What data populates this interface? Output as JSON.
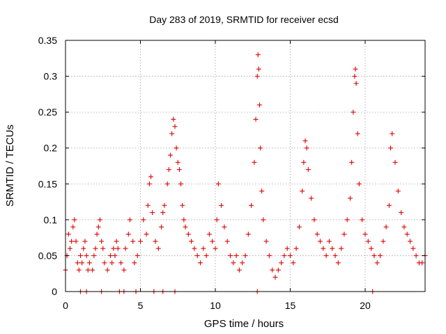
{
  "chart_data": {
    "type": "scatter",
    "title": "Day 283 of 2019, SRMTID for receiver ecsd",
    "xlabel": "GPS time / hours",
    "ylabel": "SRMTID / TECUs",
    "xlim": [
      0,
      24
    ],
    "ylim": [
      0,
      0.35
    ],
    "x_ticks": [
      0,
      5,
      10,
      15,
      20
    ],
    "y_ticks": [
      0,
      0.05,
      0.1,
      0.15,
      0.2,
      0.25,
      0.3,
      0.35
    ],
    "x_tick_labels": [
      "0",
      "5",
      "10",
      "15",
      "20"
    ],
    "y_tick_labels": [
      "0",
      "0.05",
      "0.1",
      "0.15",
      "0.2",
      "0.25",
      "0.3",
      "0.35"
    ],
    "grid": true,
    "marker": "plus",
    "color": "#e00000",
    "series": [
      {
        "name": "SRMTID",
        "x": [
          0.0,
          0.1,
          0.2,
          0.3,
          0.4,
          0.5,
          0.6,
          0.7,
          0.8,
          0.9,
          1.0,
          1.1,
          1.2,
          1.3,
          1.4,
          1.5,
          1.6,
          1.8,
          1.9,
          2.0,
          2.1,
          2.2,
          2.3,
          2.4,
          2.5,
          2.6,
          2.8,
          3.0,
          3.1,
          3.2,
          3.3,
          3.4,
          3.5,
          3.7,
          3.9,
          4.0,
          4.2,
          4.3,
          4.5,
          4.6,
          4.8,
          5.0,
          5.2,
          5.4,
          5.5,
          5.6,
          5.7,
          5.8,
          6.0,
          6.2,
          6.4,
          6.5,
          6.6,
          6.8,
          6.9,
          7.0,
          7.1,
          7.2,
          7.3,
          7.4,
          7.5,
          7.6,
          7.7,
          7.8,
          7.9,
          8.0,
          8.2,
          8.4,
          8.6,
          8.8,
          9.0,
          9.2,
          9.4,
          9.6,
          9.8,
          10.0,
          10.1,
          10.2,
          10.4,
          10.6,
          10.8,
          11.0,
          11.2,
          11.4,
          11.6,
          11.8,
          12.0,
          12.2,
          12.4,
          12.6,
          12.7,
          12.8,
          12.85,
          12.9,
          12.95,
          13.0,
          13.1,
          13.2,
          13.4,
          13.6,
          13.8,
          14.0,
          14.2,
          14.4,
          14.6,
          14.8,
          15.0,
          15.2,
          15.4,
          15.6,
          15.8,
          15.9,
          16.0,
          16.1,
          16.2,
          16.4,
          16.6,
          16.8,
          17.0,
          17.2,
          17.4,
          17.6,
          17.8,
          18.0,
          18.2,
          18.4,
          18.6,
          18.8,
          19.0,
          19.1,
          19.2,
          19.3,
          19.35,
          19.4,
          19.5,
          19.6,
          19.8,
          20.0,
          20.2,
          20.4,
          20.6,
          20.8,
          21.0,
          21.2,
          21.4,
          21.6,
          21.7,
          21.8,
          22.0,
          22.2,
          22.4,
          22.6,
          22.8,
          23.0,
          23.2,
          23.4,
          23.6,
          23.8,
          24.0,
          1.0,
          1.4,
          2.4,
          3.6,
          3.9,
          4.7,
          5.9,
          6.5,
          7.3,
          12.8,
          20.5
        ],
        "y": [
          0.03,
          0.05,
          0.08,
          0.06,
          0.07,
          0.09,
          0.1,
          0.07,
          0.04,
          0.03,
          0.05,
          0.04,
          0.06,
          0.07,
          0.05,
          0.03,
          0.04,
          0.03,
          0.05,
          0.06,
          0.08,
          0.09,
          0.1,
          0.07,
          0.06,
          0.04,
          0.03,
          0.05,
          0.04,
          0.06,
          0.05,
          0.07,
          0.06,
          0.04,
          0.03,
          0.06,
          0.08,
          0.1,
          0.07,
          0.04,
          0.05,
          0.07,
          0.1,
          0.08,
          0.12,
          0.15,
          0.16,
          0.11,
          0.07,
          0.06,
          0.09,
          0.11,
          0.12,
          0.15,
          0.17,
          0.19,
          0.22,
          0.24,
          0.23,
          0.2,
          0.18,
          0.17,
          0.15,
          0.12,
          0.1,
          0.09,
          0.08,
          0.07,
          0.06,
          0.05,
          0.04,
          0.06,
          0.05,
          0.08,
          0.07,
          0.06,
          0.1,
          0.15,
          0.12,
          0.09,
          0.07,
          0.05,
          0.04,
          0.05,
          0.03,
          0.04,
          0.05,
          0.08,
          0.12,
          0.18,
          0.24,
          0.3,
          0.33,
          0.31,
          0.26,
          0.2,
          0.14,
          0.1,
          0.07,
          0.05,
          0.03,
          0.02,
          0.03,
          0.04,
          0.05,
          0.06,
          0.05,
          0.04,
          0.06,
          0.09,
          0.14,
          0.18,
          0.21,
          0.2,
          0.17,
          0.13,
          0.1,
          0.08,
          0.07,
          0.06,
          0.05,
          0.07,
          0.06,
          0.05,
          0.04,
          0.06,
          0.08,
          0.1,
          0.13,
          0.18,
          0.25,
          0.3,
          0.31,
          0.29,
          0.22,
          0.15,
          0.1,
          0.08,
          0.07,
          0.06,
          0.05,
          0.04,
          0.05,
          0.07,
          0.09,
          0.12,
          0.2,
          0.22,
          0.18,
          0.14,
          0.11,
          0.09,
          0.08,
          0.07,
          0.06,
          0.05,
          0.04,
          0.04,
          0.05,
          0.0,
          0.0,
          0.0,
          0.0,
          0.0,
          0.0,
          0.0,
          0.0,
          0.0,
          0.0,
          0.0
        ]
      }
    ]
  }
}
